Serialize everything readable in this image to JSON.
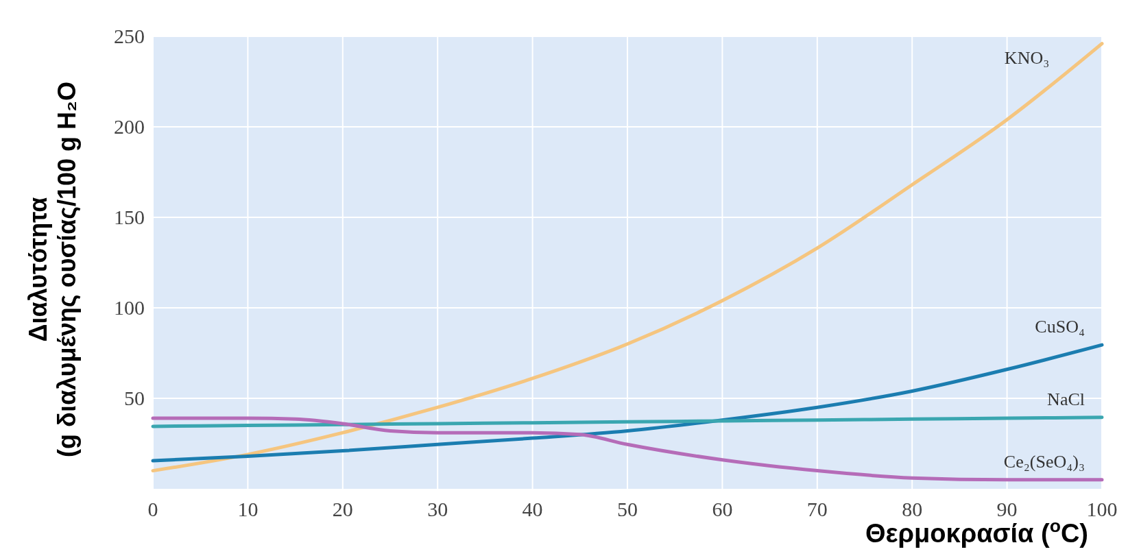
{
  "chart_data": {
    "type": "line",
    "xlabel": "Θερμοκρασία ($^{o}$C)",
    "ylabel": "Διαλυτότητα\n(g διαλυμένης ουσίας/100 g H₂O",
    "x": [
      0,
      10,
      20,
      30,
      40,
      50,
      60,
      70,
      80,
      90,
      100
    ],
    "series": [
      {
        "name": "KNO₃",
        "color": "#f5c57f",
        "values": [
          10,
          19,
          31,
          45,
          61,
          80,
          104,
          133,
          168,
          204,
          246
        ]
      },
      {
        "name": "CuSO₄",
        "color": "#1b7db0",
        "values": [
          15.5,
          18,
          21,
          24.5,
          28,
          32,
          38,
          45,
          54,
          66,
          79.5
        ]
      },
      {
        "name": "NaCl",
        "color": "#3aa6b0",
        "values": [
          34.5,
          35,
          35.5,
          36,
          36.5,
          37,
          37.5,
          38,
          38.5,
          39,
          39.5
        ]
      },
      {
        "name": "Ce₂(SeO₄)₃",
        "color": "#b56cb8",
        "x": [
          0,
          10,
          15,
          20,
          25,
          30,
          40,
          45,
          50,
          60,
          70,
          80,
          90,
          100
        ],
        "values": [
          39,
          39,
          38.5,
          36,
          32,
          31,
          31,
          30,
          24.5,
          16,
          10,
          6,
          5,
          5
        ]
      }
    ],
    "xlim": [
      0,
      100
    ],
    "xticks": [
      0,
      10,
      20,
      30,
      40,
      50,
      60,
      70,
      80,
      90,
      100
    ],
    "ylim": [
      0,
      250
    ],
    "yticks": [
      50,
      100,
      150,
      200,
      250
    ],
    "grid": true,
    "legend": false,
    "marker": "none",
    "line_style": "solid"
  }
}
